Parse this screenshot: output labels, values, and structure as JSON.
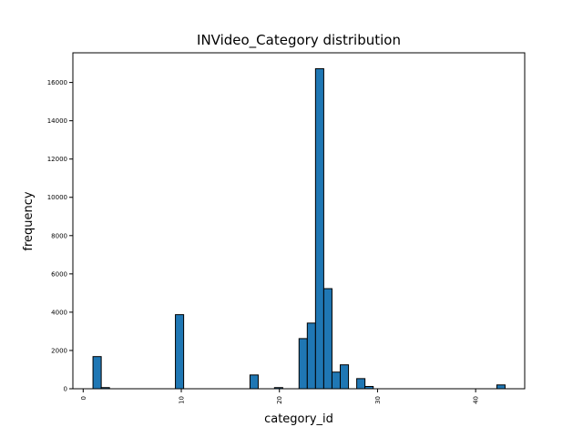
{
  "chart_data": {
    "type": "bar",
    "title": "INVideo_Category distribution",
    "xlabel": "category_id",
    "ylabel": "frequency",
    "xlim": [
      -1.05,
      45
    ],
    "ylim": [
      0,
      17550
    ],
    "xticks": [
      0,
      10,
      20,
      30,
      40
    ],
    "yticks": [
      0,
      2000,
      4000,
      6000,
      8000,
      10000,
      12000,
      14000,
      16000
    ],
    "grid": false,
    "bin_width": 0.84,
    "bins": [
      {
        "x0": 1.0,
        "value": 1680
      },
      {
        "x0": 1.84,
        "value": 60
      },
      {
        "x0": 9.4,
        "value": 3870
      },
      {
        "x0": 17.0,
        "value": 720
      },
      {
        "x0": 19.5,
        "value": 60
      },
      {
        "x0": 22.0,
        "value": 2620
      },
      {
        "x0": 22.84,
        "value": 3430
      },
      {
        "x0": 23.68,
        "value": 16720
      },
      {
        "x0": 24.52,
        "value": 5230
      },
      {
        "x0": 25.36,
        "value": 870
      },
      {
        "x0": 26.2,
        "value": 1250
      },
      {
        "x0": 27.88,
        "value": 530
      },
      {
        "x0": 28.72,
        "value": 120
      },
      {
        "x0": 42.16,
        "value": 200
      }
    ]
  }
}
